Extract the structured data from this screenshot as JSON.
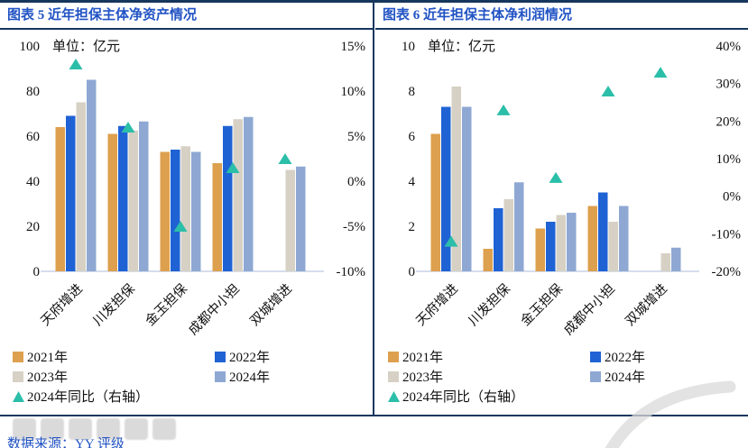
{
  "figure": {
    "source_prefix": "数据来源：",
    "source_name": "YY 评级"
  },
  "colors": {
    "accent_title": "#2153C4",
    "frame_navy": "#17365D",
    "baseline": "#C9D2E6",
    "text": "#111111",
    "watermark_gray": "#BDBDBD",
    "s2021": "#DDA04E",
    "s2022": "#1F62D4",
    "s2023": "#D6D1C4",
    "s2024": "#8EA8D3",
    "marker": "#2BBEA9"
  },
  "chart_data": [
    {
      "type": "bar",
      "title": "图表 5 近年担保主体净资产情况",
      "unit_label": "单位：亿元",
      "categories": [
        "天府增进",
        "川发担保",
        "金玉担保",
        "成都中小担",
        "双城增进"
      ],
      "left_axis": {
        "min": 0,
        "max": 100,
        "step": 20,
        "labels": [
          "0",
          "20",
          "40",
          "60",
          "80",
          "100"
        ]
      },
      "right_axis": {
        "min": -10,
        "max": 15,
        "step": 5,
        "labels": [
          "-10%",
          "-5%",
          "0%",
          "5%",
          "10%",
          "15%"
        ]
      },
      "series": [
        {
          "name": "2021年",
          "color_key": "s2021",
          "values": [
            64,
            61,
            53,
            48,
            null
          ]
        },
        {
          "name": "2022年",
          "color_key": "s2022",
          "values": [
            69,
            64.5,
            54,
            64.5,
            null
          ]
        },
        {
          "name": "2023年",
          "color_key": "s2023",
          "values": [
            75,
            62.5,
            55.5,
            67.5,
            45
          ]
        },
        {
          "name": "2024年",
          "color_key": "s2024",
          "values": [
            85,
            66.5,
            53,
            68.5,
            46.5
          ]
        }
      ],
      "marker_series": {
        "name": "2024年同比（右轴）",
        "axis": "right",
        "values": [
          13,
          6,
          -5,
          1.5,
          2.5
        ]
      },
      "legend_position": "bottom-left",
      "grid": false
    },
    {
      "type": "bar",
      "title": "图表 6 近年担保主体净利润情况",
      "unit_label": "单位：亿元",
      "categories": [
        "天府增进",
        "川发担保",
        "金玉担保",
        "成都中小担",
        "双城增进"
      ],
      "left_axis": {
        "min": 0,
        "max": 10,
        "step": 2,
        "labels": [
          "0",
          "2",
          "4",
          "6",
          "8",
          "10"
        ]
      },
      "right_axis": {
        "min": -20,
        "max": 40,
        "step": 10,
        "labels": [
          "-20%",
          "-10%",
          "0%",
          "10%",
          "20%",
          "30%",
          "40%"
        ]
      },
      "series": [
        {
          "name": "2021年",
          "color_key": "s2021",
          "values": [
            6.1,
            1.0,
            1.9,
            2.9,
            null
          ]
        },
        {
          "name": "2022年",
          "color_key": "s2022",
          "values": [
            7.3,
            2.8,
            2.2,
            3.5,
            null
          ]
        },
        {
          "name": "2023年",
          "color_key": "s2023",
          "values": [
            8.2,
            3.2,
            2.5,
            2.2,
            0.8
          ]
        },
        {
          "name": "2024年",
          "color_key": "s2024",
          "values": [
            7.3,
            3.95,
            2.6,
            2.9,
            1.05
          ]
        }
      ],
      "marker_series": {
        "name": "2024年同比（右轴）",
        "axis": "right",
        "values": [
          -12,
          23,
          5,
          28,
          33
        ]
      },
      "legend_position": "bottom-left",
      "grid": false
    }
  ]
}
